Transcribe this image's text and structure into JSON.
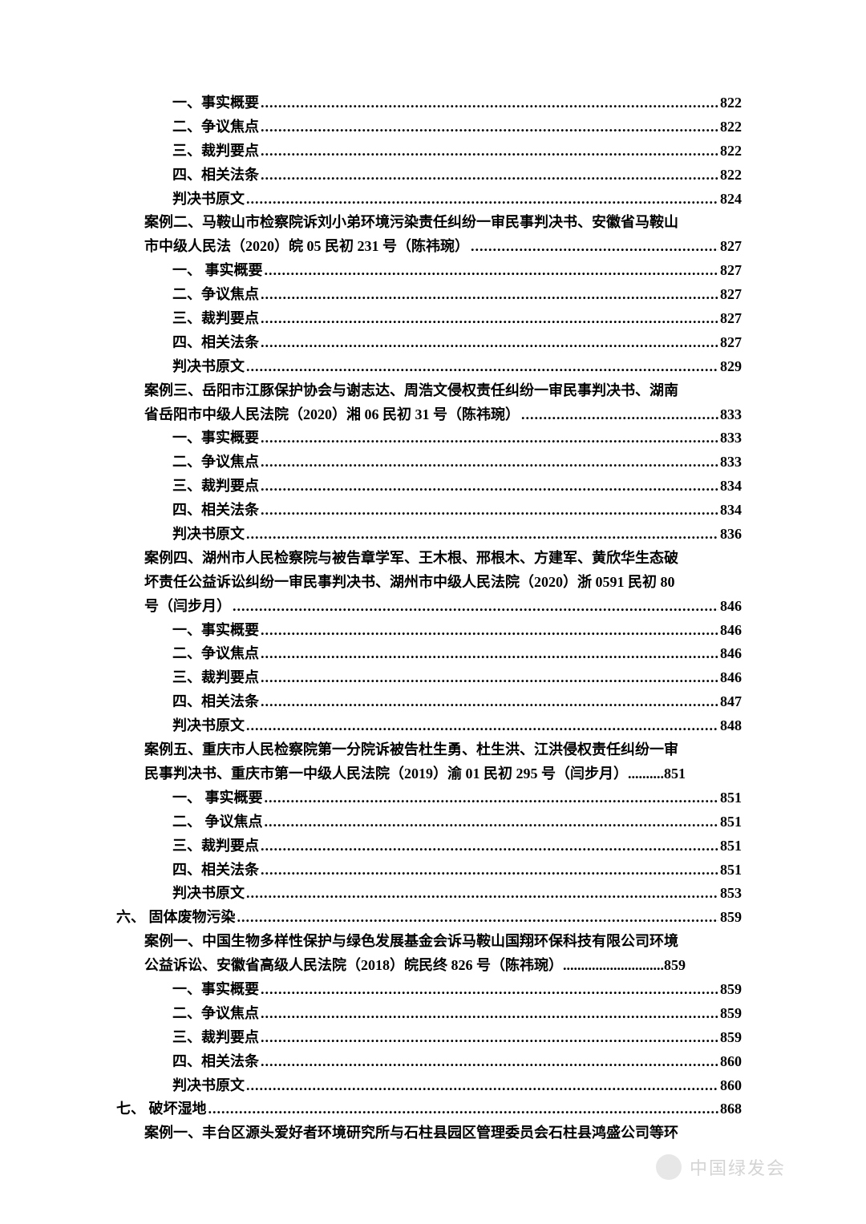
{
  "styles": {
    "background_color": "#ffffff",
    "body_bg": "#f7f7f7",
    "text_color": "#000000",
    "font_family": "SimSun",
    "base_fontsize": 18,
    "line_height": 1.55,
    "dot_leader": ".",
    "font_weight": "bold"
  },
  "entries": [
    {
      "type": "leaf",
      "indent": 3,
      "label": "一、事实概要",
      "page": "822"
    },
    {
      "type": "leaf",
      "indent": 3,
      "label": "二、争议焦点",
      "page": "822"
    },
    {
      "type": "leaf",
      "indent": 3,
      "label": "三、裁判要点",
      "page": "822"
    },
    {
      "type": "leaf",
      "indent": 3,
      "label": "四、相关法条",
      "page": "822"
    },
    {
      "type": "leaf",
      "indent": 3,
      "label": "判决书原文",
      "page": "824"
    },
    {
      "type": "wrap",
      "indent": 2,
      "lines": [
        "案例二、马鞍山市检察院诉刘小弟环境污染责任纠纷一审民事判决书、安徽省马鞍山"
      ],
      "last_label": "市中级人民法（2020）皖 05 民初 231 号（陈祎琬）",
      "page": "827"
    },
    {
      "type": "leaf",
      "indent": 3,
      "label": "一、 事实概要",
      "page": "827"
    },
    {
      "type": "leaf",
      "indent": 3,
      "label": "二、争议焦点",
      "page": "827"
    },
    {
      "type": "leaf",
      "indent": 3,
      "label": "三、裁判要点",
      "page": "827"
    },
    {
      "type": "leaf",
      "indent": 3,
      "label": "四、相关法条",
      "page": "827"
    },
    {
      "type": "leaf",
      "indent": 3,
      "label": "判决书原文",
      "page": "829"
    },
    {
      "type": "wrap",
      "indent": 2,
      "lines": [
        "案例三、岳阳市江豚保护协会与谢志达、周浩文侵权责任纠纷一审民事判决书、湖南"
      ],
      "last_label": "省岳阳市中级人民法院（2020）湘 06 民初 31 号（陈祎琬）",
      "page": "833"
    },
    {
      "type": "leaf",
      "indent": 3,
      "label": "一、事实概要",
      "page": "833"
    },
    {
      "type": "leaf",
      "indent": 3,
      "label": "二、争议焦点",
      "page": "833"
    },
    {
      "type": "leaf",
      "indent": 3,
      "label": "三、裁判要点",
      "page": "834"
    },
    {
      "type": "leaf",
      "indent": 3,
      "label": "四、相关法条",
      "page": "834"
    },
    {
      "type": "leaf",
      "indent": 3,
      "label": "判决书原文",
      "page": "836"
    },
    {
      "type": "wrap",
      "indent": 2,
      "lines": [
        "案例四、湖州市人民检察院与被告章学军、王木根、邢根木、方建军、黄欣华生态破",
        "坏责任公益诉讼纠纷一审民事判决书、湖州市中级人民法院（2020）浙 0591 民初 80"
      ],
      "last_label": "号（闫步月）",
      "page": "846"
    },
    {
      "type": "leaf",
      "indent": 3,
      "label": "一、事实概要",
      "page": "846"
    },
    {
      "type": "leaf",
      "indent": 3,
      "label": "二、争议焦点",
      "page": "846"
    },
    {
      "type": "leaf",
      "indent": 3,
      "label": "三、裁判要点",
      "page": "846"
    },
    {
      "type": "leaf",
      "indent": 3,
      "label": "四、相关法条",
      "page": "847"
    },
    {
      "type": "leaf",
      "indent": 3,
      "label": "判决书原文",
      "page": "848"
    },
    {
      "type": "wrap",
      "indent": 2,
      "lines": [
        "案例五、重庆市人民检察院第一分院诉被告杜生勇、杜生洪、江洪侵权责任纠纷一审"
      ],
      "last_label": "民事判决书、重庆市第一中级人民法院（2019）渝 01 民初 295 号（闫步月）",
      "last_sep": " .......... ",
      "page": "851"
    },
    {
      "type": "leaf",
      "indent": 3,
      "label": "一、 事实概要",
      "page": "851"
    },
    {
      "type": "leaf",
      "indent": 3,
      "label": "二、 争议焦点",
      "page": "851"
    },
    {
      "type": "leaf",
      "indent": 3,
      "label": "三、裁判要点",
      "page": "851"
    },
    {
      "type": "leaf",
      "indent": 3,
      "label": "四、相关法条",
      "page": "851"
    },
    {
      "type": "leaf",
      "indent": 3,
      "label": "判决书原文",
      "page": "853"
    },
    {
      "type": "leaf",
      "indent": 1,
      "label": "六、 固体废物污染",
      "page": "859"
    },
    {
      "type": "wrap",
      "indent": 2,
      "lines": [
        "案例一、中国生物多样性保护与绿色发展基金会诉马鞍山国翔环保科技有限公司环境"
      ],
      "last_label": "公益诉讼、安徽省高级人民法院（2018）皖民终 826 号（陈祎琬）",
      "last_sep": " ............................ ",
      "page": "859"
    },
    {
      "type": "leaf",
      "indent": 3,
      "label": "一、事实概要",
      "page": "859"
    },
    {
      "type": "leaf",
      "indent": 3,
      "label": "二、争议焦点",
      "page": "859"
    },
    {
      "type": "leaf",
      "indent": 3,
      "label": "三、裁判要点",
      "page": "859"
    },
    {
      "type": "leaf",
      "indent": 3,
      "label": "四、相关法条",
      "page": "860"
    },
    {
      "type": "leaf",
      "indent": 3,
      "label": "判决书原文",
      "page": "860"
    },
    {
      "type": "leaf",
      "indent": 1,
      "label": "七、 破坏湿地",
      "page": "868"
    },
    {
      "type": "partial",
      "indent": 2,
      "label": "案例一、丰台区源头爱好者环境研究所与石柱县园区管理委员会石柱县鸿盛公司等环"
    }
  ],
  "watermark": {
    "text": "中国绿发会",
    "color": "#b8b8b8"
  }
}
